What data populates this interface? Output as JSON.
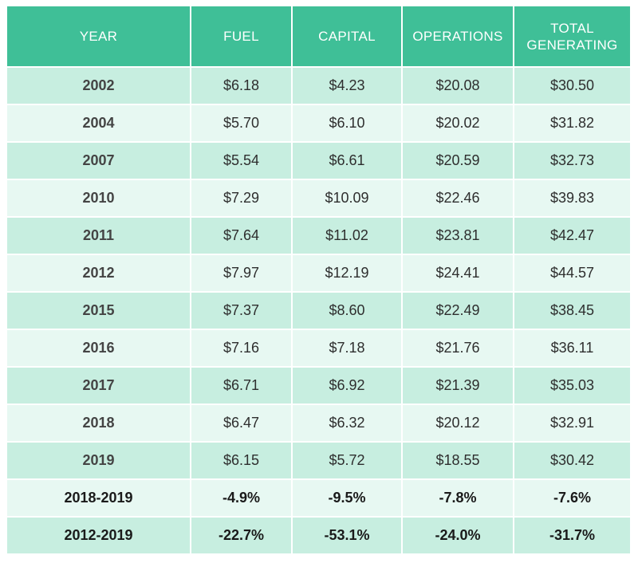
{
  "table": {
    "header": [
      "YEAR",
      "FUEL",
      "CAPITAL",
      "OPERATIONS",
      "TOTAL GENERATING"
    ],
    "rows": [
      [
        "2002",
        "$6.18",
        "$4.23",
        "$20.08",
        "$30.50"
      ],
      [
        "2004",
        "$5.70",
        "$6.10",
        "$20.02",
        "$31.82"
      ],
      [
        "2007",
        "$5.54",
        "$6.61",
        "$20.59",
        "$32.73"
      ],
      [
        "2010",
        "$7.29",
        "$10.09",
        "$22.46",
        "$39.83"
      ],
      [
        "2011",
        "$7.64",
        "$11.02",
        "$23.81",
        "$42.47"
      ],
      [
        "2012",
        "$7.97",
        "$12.19",
        "$24.41",
        "$44.57"
      ],
      [
        "2015",
        "$7.37",
        "$8.60",
        "$22.49",
        "$38.45"
      ],
      [
        "2016",
        "$7.16",
        "$7.18",
        "$21.76",
        "$36.11"
      ],
      [
        "2017",
        "$6.71",
        "$6.92",
        "$21.39",
        "$35.03"
      ],
      [
        "2018",
        "$6.47",
        "$6.32",
        "$20.12",
        "$32.91"
      ],
      [
        "2019",
        "$6.15",
        "$5.72",
        "$18.55",
        "$30.42"
      ],
      [
        "2018-2019",
        "-4.9%",
        "-9.5%",
        "-7.8%",
        "-7.6%"
      ],
      [
        "2012-2019",
        "-22.7%",
        "-53.1%",
        "-24.0%",
        "-31.7%"
      ]
    ]
  }
}
